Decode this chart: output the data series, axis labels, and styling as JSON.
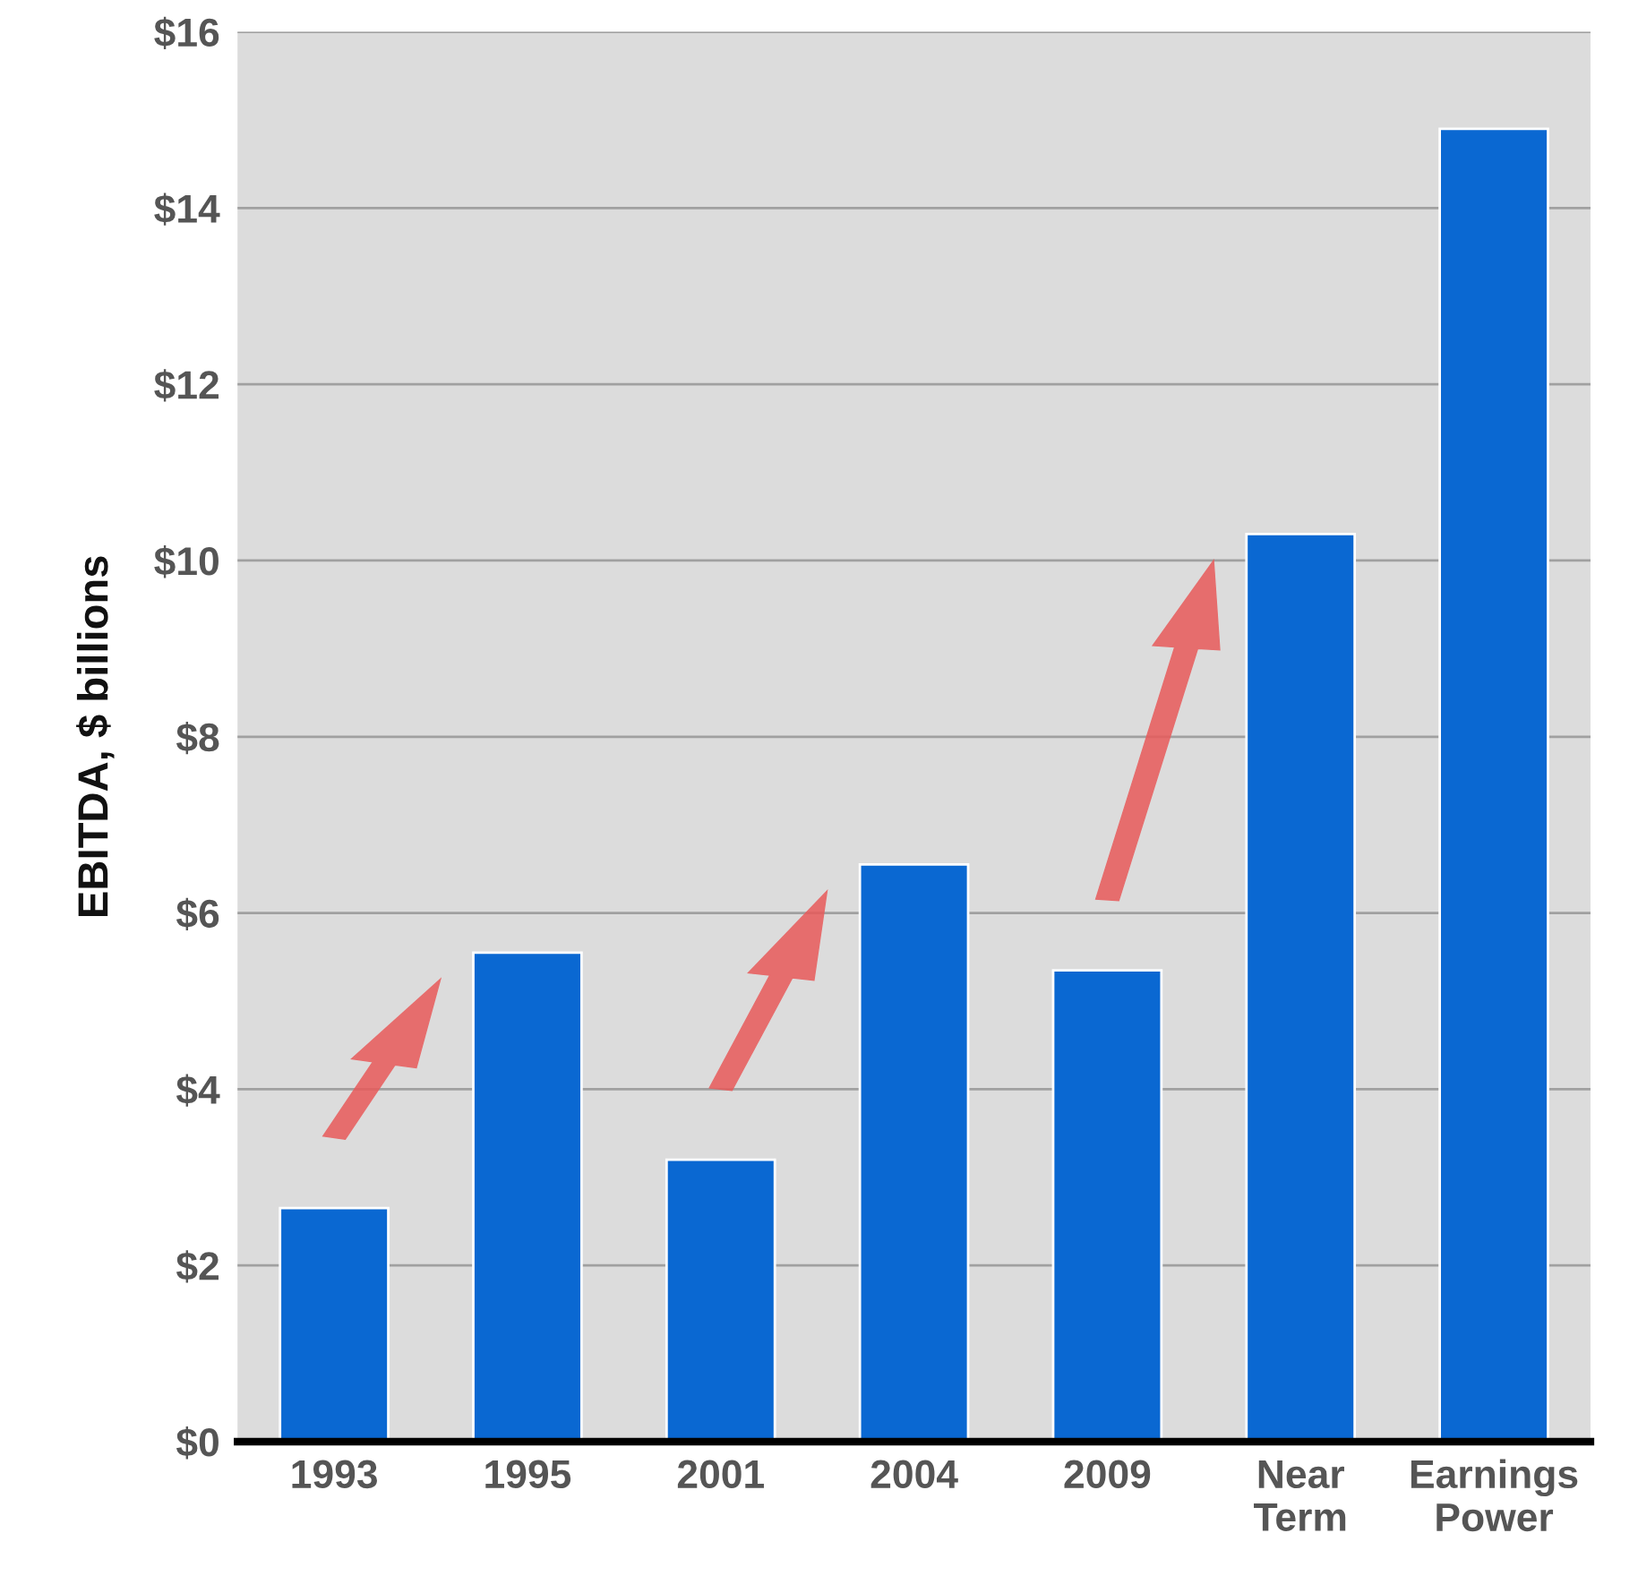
{
  "chart_data": {
    "type": "bar",
    "ylabel": "EBITDA, $ billions",
    "categories": [
      "1993",
      "1995",
      "2001",
      "2004",
      "2009",
      "Near\nTerm",
      "Earnings\nPower"
    ],
    "values": [
      2.65,
      5.55,
      3.2,
      6.55,
      5.35,
      10.3,
      14.9
    ],
    "color": "#0a68d2",
    "ylim": [
      0,
      16
    ],
    "yticks": [
      {
        "value": 0,
        "label": "$0"
      },
      {
        "value": 2,
        "label": "$2"
      },
      {
        "value": 4,
        "label": "$4"
      },
      {
        "value": 6,
        "label": "$6"
      },
      {
        "value": 8,
        "label": "$8"
      },
      {
        "value": 10,
        "label": "$10"
      },
      {
        "value": 12,
        "label": "$12"
      },
      {
        "value": 14,
        "label": "$14"
      },
      {
        "value": 16,
        "label": "$16"
      }
    ],
    "grid": "y"
  }
}
